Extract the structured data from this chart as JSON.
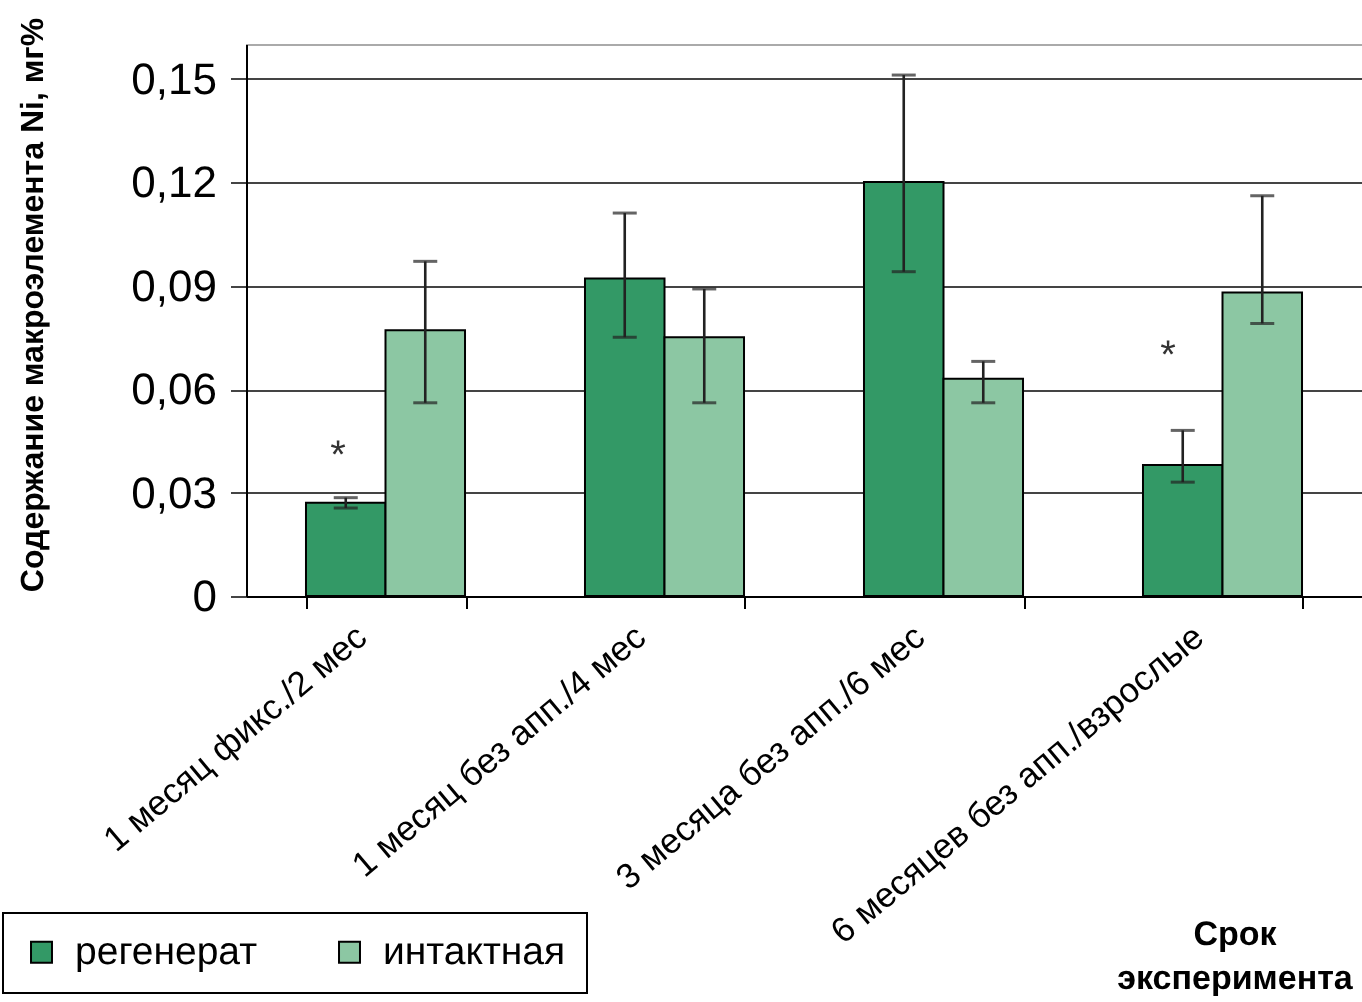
{
  "chart_data": {
    "type": "bar",
    "ylabel": "Содержание макроэлемента Ni, мг%",
    "xlabel": "Срок эксперимента",
    "categories": [
      "1 месяц фикс./2 мес",
      "1 месяц без апп./4 мес",
      "3 месяца без апп./6 мес",
      "6 месяцев без апп./взрослые"
    ],
    "series": [
      {
        "name": "регенерат",
        "color": "#339966",
        "values": [
          0.027,
          0.092,
          0.12,
          0.038
        ],
        "errors": [
          0.0015,
          [
            0.075,
            0.111
          ],
          [
            0.094,
            0.151
          ],
          [
            0.033,
            0.048
          ]
        ]
      },
      {
        "name": "интактная",
        "color": "#8cc7a3",
        "values": [
          0.077,
          0.075,
          0.063,
          0.088
        ],
        "errors": [
          [
            0.056,
            0.097
          ],
          [
            0.056,
            0.089
          ],
          [
            0.056,
            0.068
          ],
          [
            0.079,
            0.116
          ]
        ]
      }
    ],
    "ylim": [
      0,
      0.16
    ],
    "yticks": [
      0,
      {
        "value": 0.03,
        "label": "0,03"
      },
      {
        "value": 0.06,
        "label": "0,06"
      },
      {
        "value": 0.09,
        "label": "0,09"
      },
      {
        "value": 0.12,
        "label": "0,12"
      },
      {
        "value": 0.15,
        "label": "0,15"
      }
    ],
    "grid": "y",
    "legend": "bottom left",
    "annotations": [
      "*",
      "*"
    ]
  }
}
